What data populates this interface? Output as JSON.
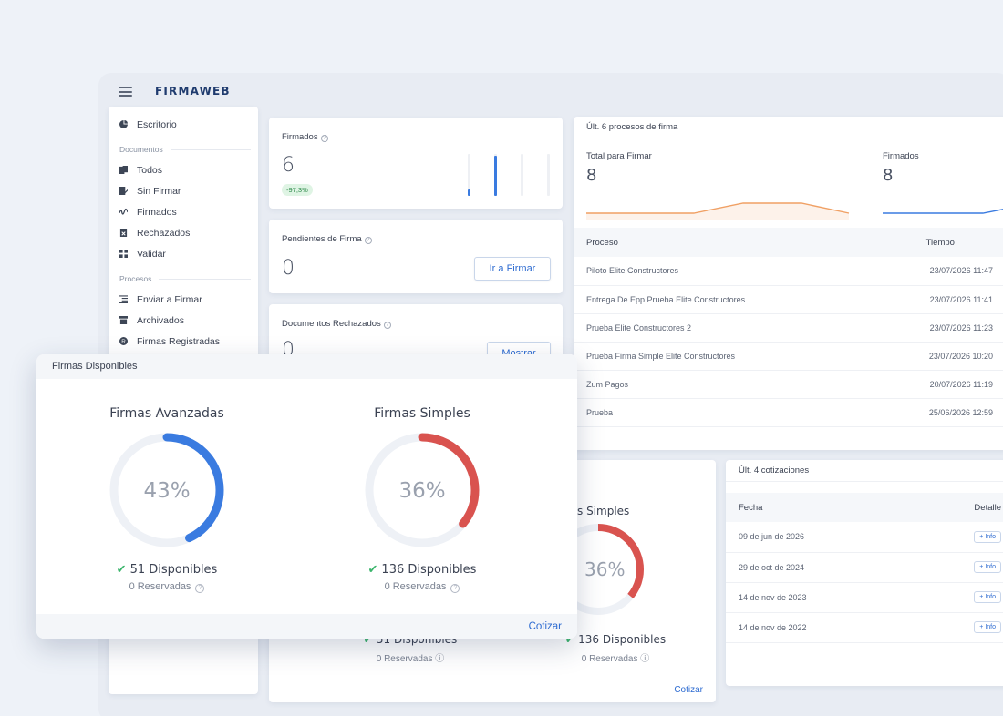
{
  "app": {
    "brand": "FIRMAWEB"
  },
  "sidebar": {
    "top": {
      "label": "Escritorio",
      "icon": "pie-chart-icon"
    },
    "sections": [
      {
        "title": "Documentos",
        "items": [
          {
            "label": "Todos",
            "icon": "documents-icon"
          },
          {
            "label": "Sin Firmar",
            "icon": "edit-document-icon"
          },
          {
            "label": "Firmados",
            "icon": "signature-icon"
          },
          {
            "label": "Rechazados",
            "icon": "rejected-document-icon"
          },
          {
            "label": "Validar",
            "icon": "grid-icon"
          }
        ]
      },
      {
        "title": "Procesos",
        "items": [
          {
            "label": "Enviar a Firmar",
            "icon": "list-send-icon"
          },
          {
            "label": "Archivados",
            "icon": "archive-icon"
          },
          {
            "label": "Firmas Registradas",
            "icon": "registered-icon"
          }
        ]
      }
    ]
  },
  "stats": {
    "firmados": {
      "title": "Firmados",
      "value": "6",
      "badge": "-97,3%",
      "bars": [
        0.15,
        0.95,
        0.0,
        0.0
      ]
    },
    "pendientes": {
      "title": "Pendientes de Firma",
      "value": "0",
      "button": "Ir a Firmar"
    },
    "rechazados": {
      "title": "Documentos Rechazados",
      "value": "0",
      "button": "Mostrar"
    }
  },
  "processes": {
    "title": "Últ. 6 procesos de firma",
    "total_label": "Total para Firmar",
    "total_value": "8",
    "firmados_label": "Firmados",
    "firmados_value": "8",
    "columns": [
      "Proceso",
      "Tiempo"
    ],
    "rows": [
      [
        "Piloto Elite Constructores",
        "23/07/2026 11:47"
      ],
      [
        "Entrega De Epp Prueba Elite Constructores",
        "23/07/2026 11:41"
      ],
      [
        "Prueba Elite Constructores 2",
        "23/07/2026 11:23"
      ],
      [
        "Prueba Firma Simple Elite Constructores",
        "23/07/2026 10:20"
      ],
      [
        "Zum Pagos",
        "20/07/2026 11:19"
      ],
      [
        "Prueba",
        "25/06/2026 12:59"
      ]
    ]
  },
  "quotes": {
    "title": "Últ. 4 cotizaciones",
    "columns": [
      "Fecha",
      "Detalle"
    ],
    "rows": [
      "09 de jun de 2026",
      "29 de oct de 2024",
      "14 de nov de 2023",
      "14 de nov de 2022"
    ],
    "info_label": "+ Info"
  },
  "background_firmas": {
    "simple_title_partial": "s Simples",
    "simple_pct_partial": "36%",
    "avanzadas_available": "51 Disponibles",
    "simples_available": "136 Disponibles",
    "reserved": "0 Reservadas",
    "cotizar": "Cotizar"
  },
  "firmas_modal": {
    "title": "Firmas Disponibles",
    "avanzadas": {
      "title": "Firmas Avanzadas",
      "percent": 43,
      "percent_label": "43%",
      "available": "51 Disponibles",
      "reserved": "0 Reservadas",
      "color": "#3a7be0"
    },
    "simples": {
      "title": "Firmas Simples",
      "percent": 36,
      "percent_label": "36%",
      "available": "136 Disponibles",
      "reserved": "0 Reservadas",
      "color": "#d9534f"
    },
    "cotizar": "Cotizar"
  },
  "colors": {
    "accent": "#2d6bd1",
    "success": "#3bb56c",
    "orange_line": "#f0a064"
  }
}
